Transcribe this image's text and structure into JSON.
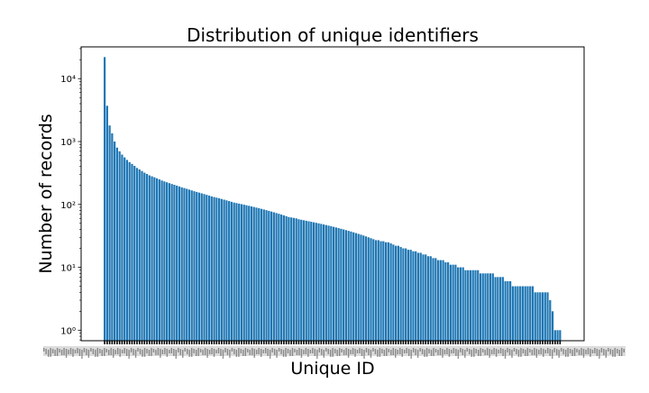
{
  "chart_data": {
    "type": "bar",
    "title": "Distribution of unique identifiers",
    "xlabel": "Unique ID",
    "ylabel": "Number of records",
    "yscale": "log",
    "ylim": [
      0.68,
      32000
    ],
    "yticks": [
      {
        "value": 1,
        "label": "10⁰"
      },
      {
        "value": 10,
        "label": "10¹"
      },
      {
        "value": 100,
        "label": "10²"
      },
      {
        "value": 1000,
        "label": "10³"
      },
      {
        "value": 10000,
        "label": "10⁴"
      }
    ],
    "xtick_labels": "illegible overlapping category labels",
    "bar_color": "#1f77b4",
    "grid": false,
    "legend": "none",
    "values": [
      22000,
      3700,
      1800,
      1350,
      1000,
      800,
      700,
      620,
      560,
      510,
      470,
      440,
      410,
      380,
      360,
      340,
      320,
      305,
      290,
      280,
      270,
      260,
      250,
      240,
      232,
      225,
      218,
      211,
      205,
      199,
      193,
      187,
      182,
      177,
      172,
      167,
      162,
      158,
      154,
      150,
      146,
      142,
      138,
      134,
      131,
      128,
      125,
      122,
      119,
      116,
      113,
      110,
      107,
      105,
      103,
      101,
      99,
      97,
      95,
      93,
      91,
      89,
      87,
      85,
      83,
      81,
      79,
      77,
      75,
      73,
      71,
      69,
      67,
      65,
      63,
      62,
      61,
      60,
      58,
      57,
      56,
      55,
      54,
      53,
      52,
      51,
      50,
      49,
      48,
      47,
      46,
      45,
      44,
      43,
      42,
      41,
      40,
      39,
      38,
      37,
      36,
      35,
      34,
      33,
      32,
      31,
      30,
      29,
      28,
      27,
      27,
      26,
      26,
      25,
      25,
      24,
      23,
      22,
      22,
      21,
      20,
      20,
      19,
      19,
      18,
      18,
      17,
      17,
      16,
      16,
      15,
      15,
      14,
      14,
      13,
      13,
      13,
      12,
      12,
      11,
      11,
      11,
      10,
      10,
      10,
      9,
      9,
      9,
      9,
      9,
      9,
      8,
      8,
      8,
      8,
      8,
      8,
      7,
      7,
      7,
      7,
      6,
      6,
      6,
      5,
      5,
      5,
      5,
      5,
      5,
      5,
      5,
      5,
      4,
      4,
      4,
      4,
      4,
      4,
      3,
      2,
      1,
      1,
      1
    ]
  }
}
